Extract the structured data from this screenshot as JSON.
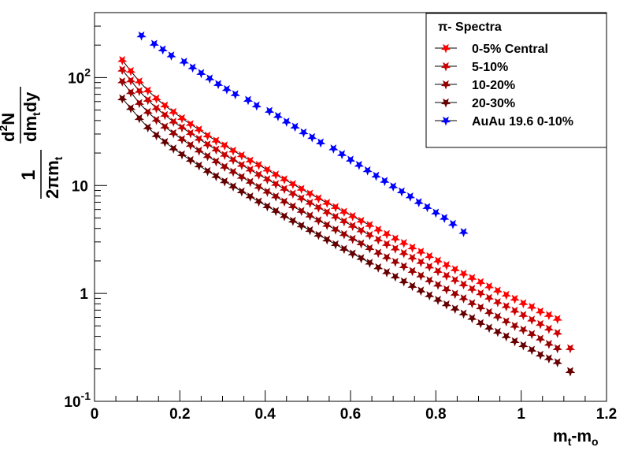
{
  "chart_data": {
    "type": "scatter",
    "title": "",
    "xlabel_main": "m",
    "xlabel_sub1": "t",
    "xlabel_mid": "-m",
    "xlabel_sub2": "o",
    "ylabel_num_1": "1",
    "ylabel_den_1": "2",
    "ylabel_den_pi": "π",
    "ylabel_den_m": "m",
    "ylabel_den_t": "t",
    "ylabel_num_d": "d",
    "ylabel_num_sup": "2",
    "ylabel_num_N": "N",
    "ylabel_den2_dm": "dm",
    "ylabel_den2_t": "t",
    "ylabel_den2_dy": "dy",
    "xlim": [
      0,
      1.2
    ],
    "ylim": [
      0.1,
      400
    ],
    "y_scale": "log",
    "grid": false,
    "legend_placement": "top-right",
    "x_ticks": [
      "0",
      "0.2",
      "0.4",
      "0.6",
      "0.8",
      "1",
      "1.2"
    ],
    "y_ticks": [
      {
        "label": "1",
        "sup": "",
        "value": 1
      },
      {
        "label": "10",
        "sup": "",
        "value": 10
      },
      {
        "label": "10",
        "sup": "2",
        "value": 100
      },
      {
        "label": "10",
        "sup": "-1",
        "value": 0.1
      }
    ],
    "legend_header": "π- Spectra",
    "series": [
      {
        "name": "0-5% Central",
        "color": "#ff0000",
        "fit": true,
        "x": [
          0.065,
          0.085,
          0.105,
          0.125,
          0.145,
          0.165,
          0.185,
          0.205,
          0.225,
          0.245,
          0.265,
          0.285,
          0.305,
          0.325,
          0.345,
          0.365,
          0.385,
          0.405,
          0.425,
          0.445,
          0.465,
          0.485,
          0.505,
          0.525,
          0.545,
          0.565,
          0.585,
          0.605,
          0.625,
          0.645,
          0.665,
          0.685,
          0.705,
          0.725,
          0.745,
          0.765,
          0.785,
          0.805,
          0.825,
          0.845,
          0.865,
          0.885,
          0.905,
          0.925,
          0.945,
          0.965,
          0.985,
          1.005,
          1.025,
          1.045,
          1.065,
          1.085
        ],
        "y": [
          145,
          115,
          92,
          76,
          64,
          55,
          48,
          42,
          37,
          33,
          29,
          26,
          23.5,
          21,
          19,
          17,
          15.5,
          14,
          12.6,
          11.4,
          10.3,
          9.3,
          8.4,
          7.6,
          6.9,
          6.3,
          5.7,
          5.2,
          4.7,
          4.3,
          3.9,
          3.55,
          3.22,
          2.93,
          2.66,
          2.43,
          2.21,
          2.01,
          1.83,
          1.67,
          1.52,
          1.39,
          1.27,
          1.16,
          1.06,
          0.97,
          0.89,
          0.81,
          0.75,
          0.68,
          0.63,
          0.58
        ]
      },
      {
        "name": "5-10%",
        "color": "#cc0000",
        "fit": true,
        "x": [
          0.065,
          0.085,
          0.105,
          0.125,
          0.145,
          0.165,
          0.185,
          0.205,
          0.225,
          0.245,
          0.265,
          0.285,
          0.305,
          0.325,
          0.345,
          0.365,
          0.385,
          0.405,
          0.425,
          0.445,
          0.465,
          0.485,
          0.505,
          0.525,
          0.545,
          0.565,
          0.585,
          0.605,
          0.625,
          0.645,
          0.665,
          0.685,
          0.705,
          0.725,
          0.745,
          0.765,
          0.785,
          0.805,
          0.825,
          0.845,
          0.865,
          0.885,
          0.905,
          0.925,
          0.945,
          0.965,
          0.985,
          1.005,
          1.025,
          1.045,
          1.065,
          1.085,
          1.115
        ],
        "y": [
          118,
          94,
          75,
          62,
          52,
          45,
          39,
          34.5,
          30.5,
          27,
          24,
          21.5,
          19.2,
          17.3,
          15.5,
          14,
          12.6,
          11.4,
          10.3,
          9.3,
          8.4,
          7.6,
          6.9,
          6.25,
          5.66,
          5.13,
          4.65,
          4.22,
          3.83,
          3.47,
          3.15,
          2.86,
          2.6,
          2.36,
          2.14,
          1.95,
          1.77,
          1.61,
          1.46,
          1.33,
          1.21,
          1.1,
          1.0,
          0.91,
          0.83,
          0.76,
          0.69,
          0.63,
          0.57,
          0.52,
          0.47,
          0.43,
          0.31
        ]
      },
      {
        "name": "10-20%",
        "color": "#990000",
        "fit": true,
        "x": [
          0.065,
          0.085,
          0.105,
          0.125,
          0.145,
          0.165,
          0.185,
          0.205,
          0.225,
          0.245,
          0.265,
          0.285,
          0.305,
          0.325,
          0.345,
          0.365,
          0.385,
          0.405,
          0.425,
          0.445,
          0.465,
          0.485,
          0.505,
          0.525,
          0.545,
          0.565,
          0.585,
          0.605,
          0.625,
          0.645,
          0.665,
          0.685,
          0.705,
          0.725,
          0.745,
          0.765,
          0.785,
          0.805,
          0.825,
          0.845,
          0.865,
          0.885,
          0.905,
          0.925,
          0.945,
          0.965,
          0.985,
          1.005,
          1.025,
          1.045,
          1.065,
          1.085,
          1.115
        ],
        "y": [
          92,
          73,
          58,
          48,
          40.5,
          35,
          30.5,
          26.8,
          23.7,
          21,
          18.7,
          16.7,
          14.9,
          13.4,
          12,
          10.8,
          9.7,
          8.75,
          7.9,
          7.1,
          6.4,
          5.8,
          5.25,
          4.75,
          4.3,
          3.9,
          3.53,
          3.2,
          2.9,
          2.62,
          2.38,
          2.16,
          1.96,
          1.78,
          1.61,
          1.46,
          1.32,
          1.2,
          1.09,
          0.99,
          0.9,
          0.81,
          0.74,
          0.67,
          0.61,
          0.55,
          0.5,
          0.46,
          0.42,
          0.38,
          0.34,
          0.31,
          0.19
        ]
      },
      {
        "name": "20-30%",
        "color": "#660000",
        "fit": true,
        "x": [
          0.065,
          0.085,
          0.105,
          0.125,
          0.145,
          0.165,
          0.185,
          0.205,
          0.225,
          0.245,
          0.265,
          0.285,
          0.305,
          0.325,
          0.345,
          0.365,
          0.385,
          0.405,
          0.425,
          0.445,
          0.465,
          0.485,
          0.505,
          0.525,
          0.545,
          0.565,
          0.585,
          0.605,
          0.625,
          0.645,
          0.665,
          0.685,
          0.705,
          0.725,
          0.745,
          0.765,
          0.785,
          0.805,
          0.825,
          0.845,
          0.865,
          0.885,
          0.905,
          0.925,
          0.945,
          0.965,
          0.985,
          1.005,
          1.025,
          1.045,
          1.065,
          1.085,
          1.115
        ],
        "y": [
          64,
          52,
          42,
          34.5,
          29.2,
          25.3,
          22,
          19.4,
          17.2,
          15.3,
          13.6,
          12.2,
          10.9,
          9.8,
          8.8,
          7.9,
          7.1,
          6.4,
          5.8,
          5.2,
          4.7,
          4.25,
          3.85,
          3.48,
          3.15,
          2.85,
          2.58,
          2.34,
          2.12,
          1.92,
          1.74,
          1.57,
          1.43,
          1.29,
          1.17,
          1.06,
          0.96,
          0.87,
          0.79,
          0.72,
          0.65,
          0.59,
          0.53,
          0.48,
          0.44,
          0.4,
          0.36,
          0.33,
          0.3,
          0.27,
          0.25,
          0.23,
          0.19
        ]
      },
      {
        "name": "AuAu 19.6 0-10%",
        "color": "#0000ff",
        "fit": false,
        "x": [
          0.11,
          0.14,
          0.16,
          0.18,
          0.21,
          0.23,
          0.25,
          0.27,
          0.29,
          0.31,
          0.33,
          0.36,
          0.38,
          0.41,
          0.43,
          0.45,
          0.47,
          0.49,
          0.51,
          0.53,
          0.56,
          0.58,
          0.6,
          0.62,
          0.64,
          0.66,
          0.68,
          0.7,
          0.72,
          0.74,
          0.76,
          0.78,
          0.8,
          0.82,
          0.84,
          0.865
        ],
        "y": [
          245,
          205,
          182,
          160,
          140,
          124,
          110,
          98,
          87,
          78,
          70,
          62,
          55,
          49,
          44,
          39,
          35,
          31,
          28,
          25,
          22,
          19.5,
          17.3,
          15.5,
          13.8,
          12.3,
          11,
          9.8,
          8.8,
          7.9,
          7.0,
          6.3,
          5.6,
          5.0,
          4.4,
          3.7
        ]
      }
    ]
  }
}
